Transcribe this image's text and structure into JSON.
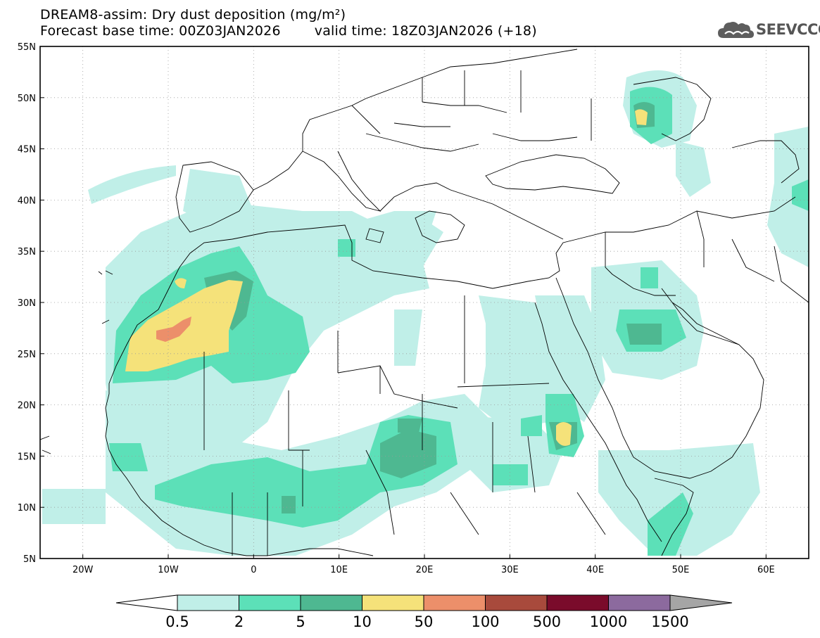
{
  "header": {
    "title_line1": "DREAM8-assim: Dry dust deposition (mg/m²)",
    "base_time": "Forecast base time: 00Z03JAN2026",
    "valid_time": "valid time: 18Z03JAN2026 (+18)"
  },
  "logo": {
    "text": "SEEVCCC",
    "icon": "cloud-icon",
    "color": "#555555"
  },
  "map": {
    "lon_range": [
      -25,
      65
    ],
    "lat_range": [
      5,
      55
    ],
    "lat_ticks": [
      {
        "value": 55,
        "label": "55N"
      },
      {
        "value": 50,
        "label": "50N"
      },
      {
        "value": 45,
        "label": "45N"
      },
      {
        "value": 40,
        "label": "40N"
      },
      {
        "value": 35,
        "label": "35N"
      },
      {
        "value": 30,
        "label": "30N"
      },
      {
        "value": 25,
        "label": "25N"
      },
      {
        "value": 20,
        "label": "20N"
      },
      {
        "value": 15,
        "label": "15N"
      },
      {
        "value": 10,
        "label": "10N"
      },
      {
        "value": 5,
        "label": "5N"
      }
    ],
    "lon_ticks": [
      {
        "value": -20,
        "label": "20W"
      },
      {
        "value": -10,
        "label": "10W"
      },
      {
        "value": 0,
        "label": "0"
      },
      {
        "value": 10,
        "label": "10E"
      },
      {
        "value": 20,
        "label": "20E"
      },
      {
        "value": 30,
        "label": "30E"
      },
      {
        "value": 40,
        "label": "40E"
      },
      {
        "value": 50,
        "label": "50E"
      },
      {
        "value": 60,
        "label": "60E"
      }
    ],
    "grid": true
  },
  "colorbar": {
    "labels": [
      "0.5",
      "2",
      "5",
      "10",
      "50",
      "100",
      "500",
      "1000",
      "1500"
    ],
    "colors": [
      "#c0efe8",
      "#5ce0b8",
      "#4eb891",
      "#f5e27a",
      "#ec8f6a",
      "#a84a3c",
      "#7a0b2b",
      "#8c6a9e"
    ],
    "under_color": "#ffffff",
    "over_color": "#a5a5a5"
  }
}
